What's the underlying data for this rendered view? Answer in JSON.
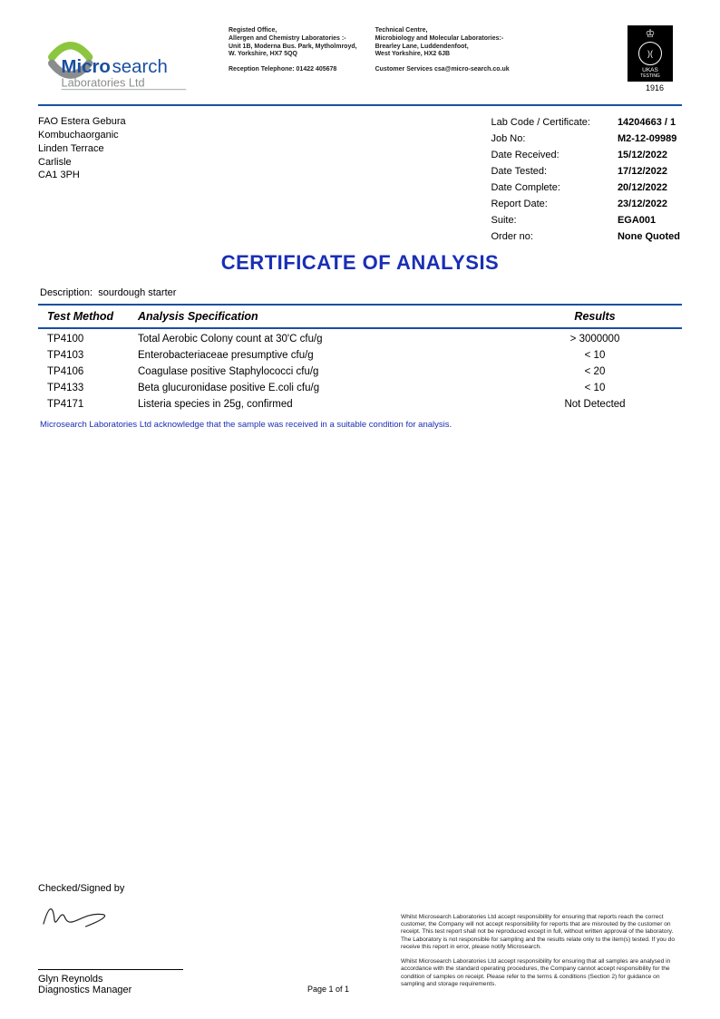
{
  "company": {
    "name_line1": "Microsearch",
    "name_line2": "Laboratories Ltd",
    "logo_colors": {
      "green": "#8cc63f",
      "grey": "#8a8c8e",
      "text": "#1a4fa0"
    }
  },
  "office_left": {
    "heading": "Registed Office,",
    "line1": "Allergen and Chemistry Laboratories :-",
    "line2": "Unit 1B, Moderna Bus. Park, Mytholmroyd,",
    "line3": "W. Yorkshire, HX7 5QQ",
    "phone": "Reception Telephone: 01422 405678"
  },
  "office_right": {
    "heading": "Technical Centre,",
    "line1": "Microbiology and Molecular Laboratories:-",
    "line2": "Brearley Lane, Luddendenfoot,",
    "line3": "West Yorkshire, HX2 6JB",
    "cs": "Customer Services csa@micro-search.co.uk"
  },
  "ukas": {
    "label_top": "UKAS",
    "label_bot": "TESTING",
    "number": "1916"
  },
  "recipient": {
    "l1": "FAO Estera Gebura",
    "l2": "Kombuchaorganic",
    "l3": "Linden Terrace",
    "l4": "Carlisle",
    "l5": "CA1 3PH"
  },
  "meta": {
    "labcode_lbl": "Lab Code / Certificate:",
    "labcode_val": "14204663 / 1",
    "jobno_lbl": "Job No:",
    "jobno_val": "M2-12-09989",
    "recv_lbl": "Date Received:",
    "recv_val": "15/12/2022",
    "tested_lbl": "Date Tested:",
    "tested_val": "17/12/2022",
    "complete_lbl": "Date Complete:",
    "complete_val": "20/12/2022",
    "report_lbl": "Report Date:",
    "report_val": "23/12/2022",
    "suite_lbl": "Suite:",
    "suite_val": "EGA001",
    "order_lbl": "Order no:",
    "order_val": "None Quoted"
  },
  "title": "CERTIFICATE OF ANALYSIS",
  "description_lbl": "Description:",
  "description_val": "sourdough starter",
  "columns": {
    "method": "Test Method",
    "spec": "Analysis Specification",
    "result": "Results"
  },
  "rows": [
    {
      "method": "TP4100",
      "spec": "Total Aerobic Colony count at 30'C cfu/g",
      "result": "> 3000000"
    },
    {
      "method": "TP4103",
      "spec": "Enterobacteriaceae presumptive cfu/g",
      "result": "< 10"
    },
    {
      "method": "TP4106",
      "spec": "Coagulase positive Staphylococci cfu/g",
      "result": "< 20"
    },
    {
      "method": "TP4133",
      "spec": "Beta glucuronidase positive E.coli cfu/g",
      "result": "< 10"
    },
    {
      "method": "TP4171",
      "spec": "Listeria species in 25g, confirmed",
      "result": "Not Detected"
    }
  ],
  "acknowledge": "Microsearch Laboratories Ltd acknowledge that the sample was received in a suitable condition for analysis.",
  "signature": {
    "label": "Checked/Signed by",
    "name": "Glyn Reynolds",
    "role": "Diagnostics Manager"
  },
  "page_label": "Page 1  of  1",
  "disclaimer": {
    "p1": "Whilst Microsearch Laboratories Ltd accept responsibility for ensuring that reports reach the correct customer, the Company will not accept responsibility for reports that are misrouted by the customer on receipt. This test report shall not be reproduced except in full, without written approval of the laboratory. The Laboratory is not responsible for sampling and the results relate only to the item(s) tested. If you do receive this report in error, please notify Microsearch.",
    "p2": "Whilst Microsearch Laboratories Ltd accept responsibility for ensuring that all samples are analysed in accordance with the standard operating procedures, the Company cannot accept responsibility for the condition of samples on receipt. Please refer to the terms & conditions (Section 2) for guidance on sampling and storage requirements."
  }
}
